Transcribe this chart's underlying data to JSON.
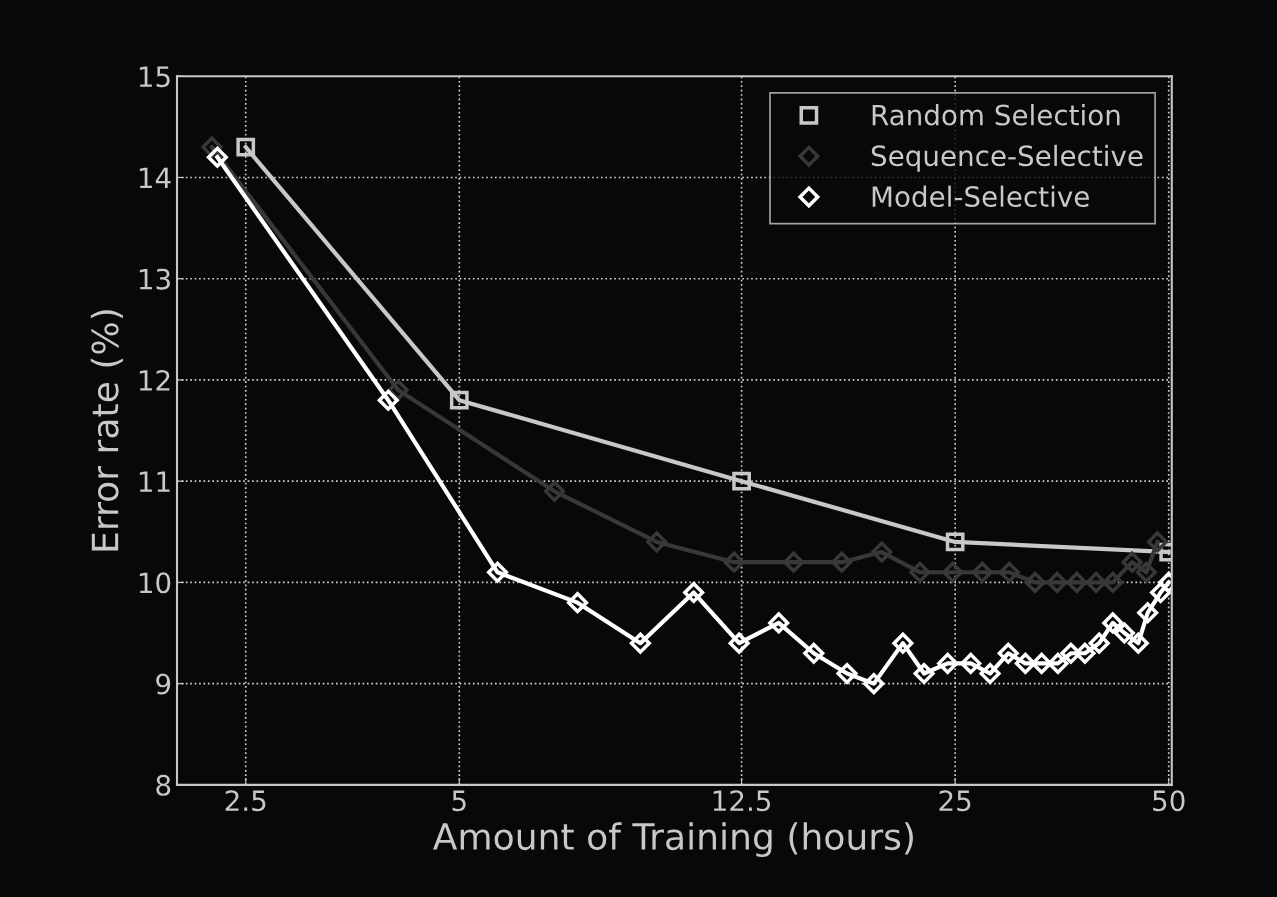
{
  "chart_data": {
    "type": "line",
    "xlabel": "Amount of Training (hours)",
    "ylabel": "Error rate (%)",
    "log": "x",
    "xlim": [
      2,
      50.5
    ],
    "ylim": [
      8,
      15
    ],
    "xticks": [
      2.5,
      5,
      12.5,
      25,
      50
    ],
    "yticks": [
      8,
      9,
      10,
      11,
      12,
      13,
      14,
      15
    ],
    "grid": true,
    "legend": "top right",
    "series": [
      {
        "name": "Random Selection",
        "color": "#c8c8c8",
        "marker": "square",
        "x": [
          2.5,
          5,
          12.5,
          25,
          50
        ],
        "values": [
          14.3,
          11.8,
          11.0,
          10.4,
          10.3
        ]
      },
      {
        "name": "Sequence-Selective",
        "color": "#383838",
        "marker": "diamond",
        "x": [
          2.24,
          4.1,
          6.81,
          9.49,
          12.2,
          14.8,
          17.3,
          19.7,
          22.3,
          24.8,
          27.3,
          29.8,
          32.4,
          34.8,
          37.1,
          39.5,
          41.7,
          44.4,
          46.5,
          48.2
        ],
        "values": [
          14.3,
          11.9,
          10.9,
          10.4,
          10.2,
          10.2,
          10.2,
          10.3,
          10.1,
          10.1,
          10.1,
          10.1,
          10.0,
          10.0,
          10.0,
          10.0,
          10.0,
          10.2,
          10.1,
          10.4
        ]
      },
      {
        "name": "Model-Selective",
        "color": "#ffffff",
        "marker": "diamond",
        "x": [
          2.28,
          3.97,
          5.66,
          7.34,
          9.0,
          10.7,
          12.4,
          14.1,
          15.8,
          17.6,
          19.2,
          21.1,
          22.6,
          24.4,
          26.3,
          28.0,
          29.7,
          31.4,
          33.1,
          34.9,
          36.4,
          38.1,
          39.9,
          41.7,
          43.3,
          45.3,
          46.7,
          48.7,
          50.0
        ],
        "values": [
          14.2,
          11.8,
          10.1,
          9.8,
          9.4,
          9.9,
          9.4,
          9.6,
          9.3,
          9.1,
          9.0,
          9.4,
          9.1,
          9.2,
          9.2,
          9.1,
          9.3,
          9.2,
          9.2,
          9.2,
          9.3,
          9.3,
          9.4,
          9.6,
          9.5,
          9.4,
          9.7,
          9.9,
          10.0
        ]
      }
    ]
  }
}
